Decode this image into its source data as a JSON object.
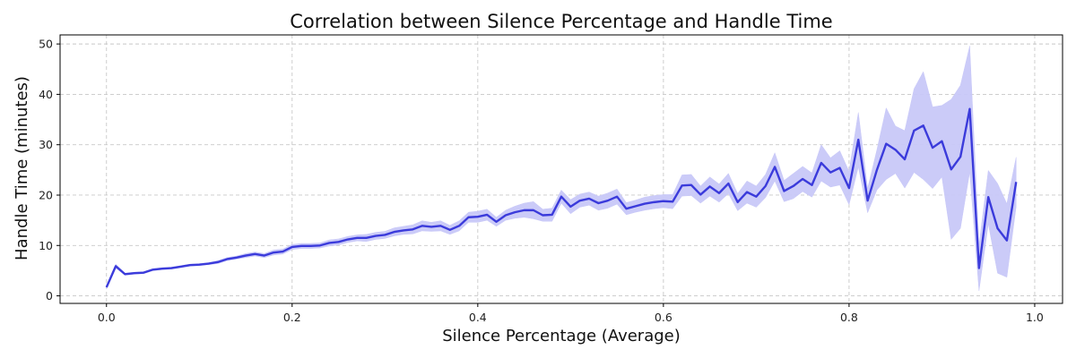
{
  "chart_data": {
    "type": "line",
    "title": "Correlation between Silence Percentage and Handle Time",
    "xlabel": "Silence Percentage (Average)",
    "ylabel": "Handle Time (minutes)",
    "xlim": [
      -0.05,
      1.03
    ],
    "ylim": [
      -1.5,
      51.8
    ],
    "xticks": [
      0.0,
      0.2,
      0.4,
      0.6,
      0.8,
      1.0
    ],
    "xtick_labels": [
      "0.0",
      "0.2",
      "0.4",
      "0.6",
      "0.8",
      "1.0"
    ],
    "yticks": [
      0,
      10,
      20,
      30,
      40,
      50
    ],
    "ytick_labels": [
      "0",
      "10",
      "20",
      "30",
      "40",
      "50"
    ],
    "grid": true,
    "grid_style": "dashed",
    "legend": false,
    "colors": {
      "line": "#3b3bdb",
      "band": "#c8c8f8",
      "grid": "#c8c8c8",
      "axes": "#000000"
    },
    "series": [
      {
        "x": [
          0.0,
          0.01,
          0.02,
          0.03,
          0.04,
          0.05,
          0.06,
          0.07,
          0.08,
          0.09,
          0.1,
          0.11,
          0.12,
          0.13,
          0.14,
          0.15,
          0.16,
          0.17,
          0.18,
          0.19,
          0.2,
          0.21,
          0.22,
          0.23,
          0.24,
          0.25,
          0.26,
          0.27,
          0.28,
          0.29,
          0.3,
          0.31,
          0.32,
          0.33,
          0.34,
          0.35,
          0.36,
          0.37,
          0.38,
          0.39,
          0.4,
          0.41,
          0.42,
          0.43,
          0.44,
          0.45,
          0.46,
          0.47,
          0.48,
          0.49,
          0.5,
          0.51,
          0.52,
          0.53,
          0.54,
          0.55,
          0.56,
          0.57,
          0.58,
          0.59,
          0.6,
          0.61,
          0.62,
          0.63,
          0.64,
          0.65,
          0.66,
          0.67,
          0.68,
          0.69,
          0.7,
          0.71,
          0.72,
          0.73,
          0.74,
          0.75,
          0.76,
          0.77,
          0.78,
          0.79,
          0.8,
          0.81,
          0.82,
          0.83,
          0.84,
          0.85,
          0.86,
          0.87,
          0.88,
          0.89,
          0.9,
          0.91,
          0.92,
          0.93,
          0.94,
          0.95,
          0.96,
          0.97,
          0.98
        ],
        "y": [
          1.7,
          5.9,
          4.3,
          4.5,
          4.6,
          5.2,
          5.4,
          5.5,
          5.8,
          6.1,
          6.2,
          6.4,
          6.7,
          7.3,
          7.6,
          8.0,
          8.3,
          8.0,
          8.6,
          8.8,
          9.7,
          9.9,
          9.9,
          10.0,
          10.5,
          10.7,
          11.2,
          11.5,
          11.5,
          11.9,
          12.1,
          12.7,
          13.0,
          13.2,
          13.9,
          13.7,
          13.9,
          13.1,
          13.9,
          15.6,
          15.7,
          16.1,
          14.7,
          16.0,
          16.6,
          17.0,
          17.0,
          16.0,
          16.1,
          19.7,
          17.7,
          18.9,
          19.3,
          18.4,
          18.9,
          19.7,
          17.3,
          17.8,
          18.3,
          18.6,
          18.8,
          18.7,
          21.9,
          22.0,
          20.1,
          21.7,
          20.4,
          22.3,
          18.6,
          20.6,
          19.7,
          21.8,
          25.6,
          20.8,
          21.8,
          23.2,
          22.0,
          26.4,
          24.5,
          25.4,
          21.4,
          31.0,
          18.9,
          25.0,
          30.2,
          29.0,
          27.1,
          32.8,
          33.8,
          29.4,
          30.7,
          25.1,
          27.6,
          37.1,
          5.5,
          19.6,
          13.4,
          11.0,
          22.6
        ],
        "lower": [
          1.4,
          5.5,
          4.1,
          4.3,
          4.4,
          5.0,
          5.2,
          5.3,
          5.6,
          5.9,
          6.0,
          6.2,
          6.4,
          7.0,
          7.3,
          7.6,
          7.9,
          7.6,
          8.1,
          8.3,
          9.2,
          9.4,
          9.4,
          9.5,
          9.9,
          10.1,
          10.6,
          10.9,
          10.8,
          11.2,
          11.4,
          11.9,
          12.2,
          12.3,
          12.9,
          12.8,
          12.9,
          12.2,
          12.9,
          14.6,
          14.6,
          15.0,
          13.8,
          15.0,
          15.4,
          15.6,
          15.3,
          14.8,
          14.8,
          18.4,
          16.3,
          17.6,
          18.0,
          17.0,
          17.4,
          18.2,
          16.1,
          16.6,
          17.0,
          17.3,
          17.5,
          17.3,
          19.8,
          19.9,
          18.4,
          19.8,
          18.6,
          20.3,
          16.9,
          18.4,
          17.6,
          19.5,
          22.8,
          18.7,
          19.3,
          20.7,
          19.6,
          22.8,
          21.6,
          22.0,
          18.1,
          25.6,
          16.5,
          21.0,
          23.1,
          24.3,
          21.4,
          24.5,
          23.1,
          21.3,
          23.6,
          11.2,
          13.4,
          24.6,
          1.0,
          14.3,
          4.5,
          3.7,
          17.7
        ],
        "upper": [
          2.0,
          6.3,
          4.5,
          4.7,
          4.8,
          5.4,
          5.6,
          5.7,
          6.0,
          6.3,
          6.4,
          6.6,
          7.0,
          7.6,
          7.9,
          8.4,
          8.7,
          8.4,
          9.1,
          9.3,
          10.2,
          10.4,
          10.4,
          10.5,
          11.1,
          11.3,
          11.8,
          12.1,
          12.2,
          12.6,
          12.8,
          13.5,
          13.8,
          14.1,
          14.9,
          14.6,
          14.9,
          14.0,
          14.9,
          16.6,
          16.8,
          17.2,
          15.6,
          17.0,
          17.8,
          18.4,
          18.7,
          17.2,
          17.4,
          21.0,
          19.1,
          20.2,
          20.6,
          19.8,
          20.4,
          21.2,
          18.5,
          19.0,
          19.6,
          19.9,
          20.1,
          20.1,
          24.0,
          24.1,
          21.8,
          23.6,
          22.2,
          24.3,
          20.3,
          22.8,
          21.8,
          24.1,
          28.4,
          22.9,
          24.3,
          25.7,
          24.4,
          30.0,
          27.4,
          28.8,
          24.7,
          36.4,
          21.3,
          29.0,
          37.3,
          33.7,
          32.8,
          41.1,
          44.5,
          37.5,
          37.8,
          39.0,
          41.8,
          49.6,
          10.0,
          24.9,
          22.3,
          18.3,
          27.5
        ]
      }
    ]
  }
}
